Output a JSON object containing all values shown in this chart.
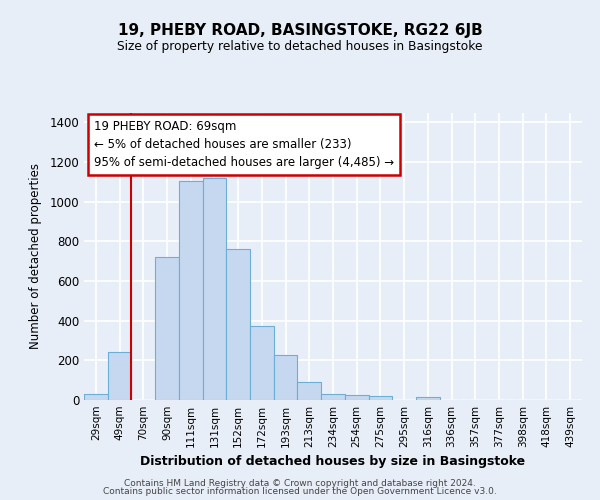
{
  "title1": "19, PHEBY ROAD, BASINGSTOKE, RG22 6JB",
  "title2": "Size of property relative to detached houses in Basingstoke",
  "xlabel": "Distribution of detached houses by size in Basingstoke",
  "ylabel": "Number of detached properties",
  "categories": [
    "29sqm",
    "49sqm",
    "70sqm",
    "90sqm",
    "111sqm",
    "131sqm",
    "152sqm",
    "172sqm",
    "193sqm",
    "213sqm",
    "234sqm",
    "254sqm",
    "275sqm",
    "295sqm",
    "316sqm",
    "336sqm",
    "357sqm",
    "377sqm",
    "398sqm",
    "418sqm",
    "439sqm"
  ],
  "values": [
    30,
    240,
    0,
    720,
    1105,
    1120,
    760,
    375,
    225,
    90,
    30,
    25,
    18,
    0,
    15,
    0,
    0,
    0,
    0,
    0,
    0
  ],
  "bar_color": "#c5d8f0",
  "bar_edge_color": "#6baed6",
  "vline_index": 2,
  "vline_color": "#cc0000",
  "annotation_text": "19 PHEBY ROAD: 69sqm\n← 5% of detached houses are smaller (233)\n95% of semi-detached houses are larger (4,485) →",
  "annotation_box_color": "#ffffff",
  "annotation_box_edge": "#cc0000",
  "footer_line1": "Contains HM Land Registry data © Crown copyright and database right 2024.",
  "footer_line2": "Contains public sector information licensed under the Open Government Licence v3.0.",
  "ylim": [
    0,
    1450
  ],
  "yticks": [
    0,
    200,
    400,
    600,
    800,
    1000,
    1200,
    1400
  ],
  "bg_color": "#e8eef8",
  "grid_color": "#ffffff"
}
